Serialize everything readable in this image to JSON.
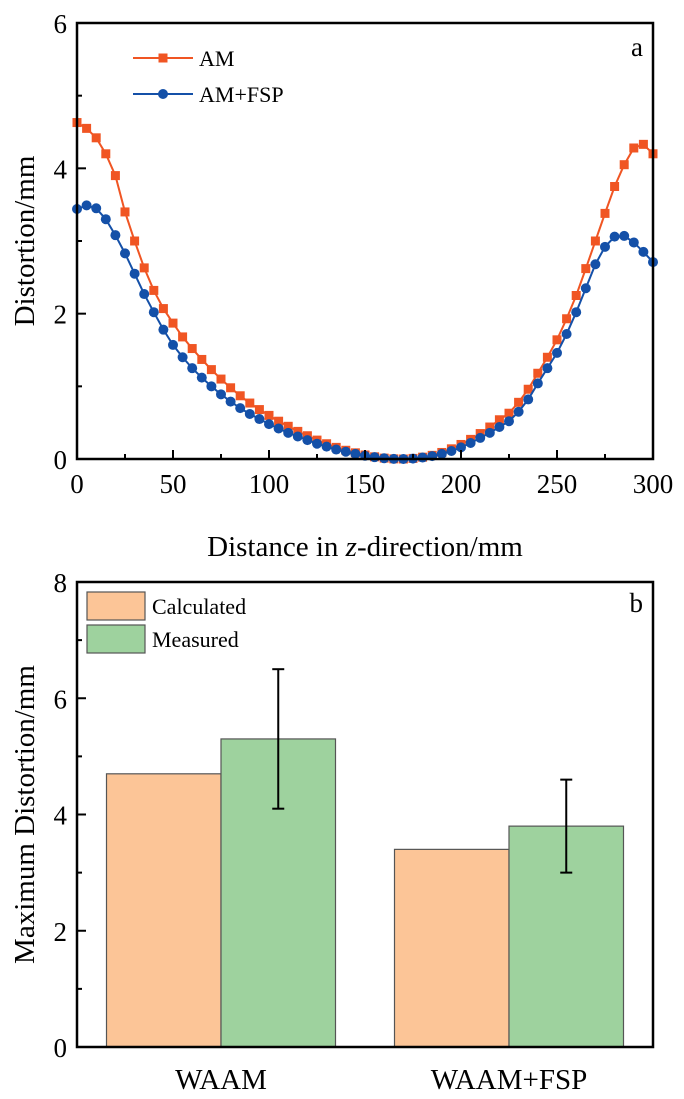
{
  "chart_data": [
    {
      "type": "line",
      "panel_label": "a",
      "xlabel_prefix": "Distance in ",
      "xlabel_italic": "z",
      "xlabel_suffix": "-direction/mm",
      "ylabel": "Distortion/mm",
      "xlim": [
        0,
        300
      ],
      "ylim": [
        0,
        6
      ],
      "xticks": [
        0,
        50,
        100,
        150,
        200,
        250,
        300
      ],
      "xtick_labels": [
        "0",
        "50",
        "100",
        "150",
        "200",
        "250",
        "300"
      ],
      "yticks": [
        0,
        2,
        4,
        6
      ],
      "ytick_labels": [
        "0",
        "2",
        "4",
        "6"
      ],
      "grid": false,
      "legend_position": "top-left",
      "x": [
        0,
        5,
        10,
        15,
        20,
        25,
        30,
        35,
        40,
        45,
        50,
        55,
        60,
        65,
        70,
        75,
        80,
        85,
        90,
        95,
        100,
        105,
        110,
        115,
        120,
        125,
        130,
        135,
        140,
        145,
        150,
        155,
        160,
        165,
        170,
        175,
        180,
        185,
        190,
        195,
        200,
        205,
        210,
        215,
        220,
        225,
        230,
        235,
        240,
        245,
        250,
        255,
        260,
        265,
        270,
        275,
        280,
        285,
        290,
        295,
        300
      ],
      "series": [
        {
          "name": "AM",
          "color": "#f05523",
          "marker": "square",
          "values": [
            4.63,
            4.55,
            4.42,
            4.2,
            3.9,
            3.4,
            3.0,
            2.63,
            2.32,
            2.07,
            1.87,
            1.68,
            1.52,
            1.37,
            1.23,
            1.1,
            0.98,
            0.87,
            0.77,
            0.68,
            0.6,
            0.52,
            0.45,
            0.38,
            0.32,
            0.26,
            0.21,
            0.16,
            0.12,
            0.085,
            0.055,
            0.03,
            0.012,
            0.002,
            0,
            0.008,
            0.025,
            0.05,
            0.09,
            0.14,
            0.2,
            0.27,
            0.35,
            0.44,
            0.54,
            0.63,
            0.78,
            0.96,
            1.18,
            1.4,
            1.64,
            1.93,
            2.25,
            2.62,
            3.0,
            3.38,
            3.75,
            4.05,
            4.28,
            4.33,
            4.2
          ]
        },
        {
          "name": "AM+FSP",
          "color": "#1450a8",
          "marker": "circle",
          "values": [
            3.44,
            3.49,
            3.45,
            3.3,
            3.08,
            2.83,
            2.55,
            2.27,
            2.02,
            1.78,
            1.57,
            1.4,
            1.25,
            1.12,
            1.0,
            0.89,
            0.79,
            0.7,
            0.62,
            0.55,
            0.48,
            0.42,
            0.36,
            0.31,
            0.26,
            0.21,
            0.17,
            0.13,
            0.1,
            0.07,
            0.045,
            0.025,
            0.01,
            0.002,
            0,
            0.006,
            0.02,
            0.04,
            0.07,
            0.11,
            0.16,
            0.22,
            0.29,
            0.36,
            0.44,
            0.52,
            0.65,
            0.82,
            1.04,
            1.25,
            1.46,
            1.72,
            2.02,
            2.35,
            2.68,
            2.92,
            3.06,
            3.07,
            2.98,
            2.85,
            2.71
          ]
        }
      ]
    },
    {
      "type": "bar",
      "panel_label": "b",
      "ylabel": "Maximum Distortion/mm",
      "xlabel": "",
      "categories": [
        "WAAM",
        "WAAM+FSP"
      ],
      "ylim": [
        0,
        8
      ],
      "yticks": [
        0,
        2,
        4,
        6,
        8
      ],
      "ytick_labels": [
        "0",
        "2",
        "4",
        "6",
        "8"
      ],
      "grid": false,
      "legend_position": "top-left",
      "series": [
        {
          "name": "Calculated",
          "color": "#fcc597",
          "values": [
            4.7,
            3.4
          ]
        },
        {
          "name": "Measured",
          "color": "#9ed29e",
          "values": [
            5.3,
            3.8
          ],
          "error": [
            1.2,
            0.8
          ]
        }
      ]
    }
  ]
}
